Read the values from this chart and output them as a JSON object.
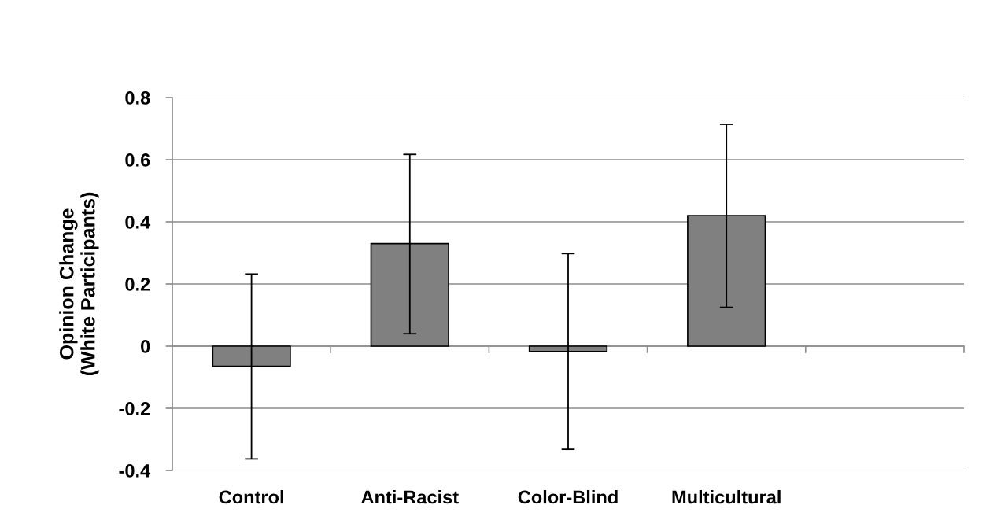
{
  "chart_data": {
    "type": "bar",
    "categories": [
      "Control",
      "Anti-Racist",
      "Color-Blind",
      "Multicultural",
      null
    ],
    "values": [
      -0.065,
      0.33,
      -0.017,
      0.42,
      null
    ],
    "errors": [
      [
        -0.363,
        0.232
      ],
      [
        0.04,
        0.617
      ],
      [
        -0.332,
        0.298
      ],
      [
        0.125,
        0.714
      ],
      null
    ],
    "color": "#808080",
    "ylabel": "Opinion Change\n(White Participants)",
    "ylim": [
      -0.4,
      0.8
    ],
    "yticks": [
      -0.4,
      -0.2,
      0,
      0.2,
      0.4,
      0.6,
      0.8
    ],
    "grid": "y"
  }
}
